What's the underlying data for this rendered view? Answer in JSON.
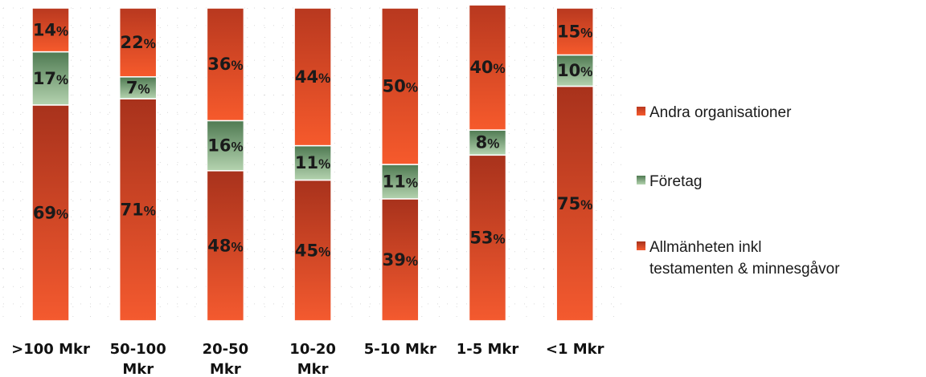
{
  "chart_data": {
    "type": "bar",
    "stacked": true,
    "percent": true,
    "categories": [
      ">100 Mkr",
      "50-100 Mkr",
      "20-50 Mkr",
      "10-20 Mkr",
      "5-10 Mkr",
      "1-5 Mkr",
      "<1 Mkr"
    ],
    "category_lines": [
      [
        ">100 Mkr"
      ],
      [
        "50-100",
        "Mkr"
      ],
      [
        "20-50",
        "Mkr"
      ],
      [
        "10-20",
        "Mkr"
      ],
      [
        "5-10 Mkr"
      ],
      [
        "1-5 Mkr"
      ],
      [
        "<1 Mkr"
      ]
    ],
    "series": [
      {
        "name": "Allmänheten inkl testamenten & minnesgåvor",
        "legend_lines": [
          "Allmänheten inkl",
          "testamenten & minnesgåvor"
        ],
        "values": [
          69,
          71,
          48,
          45,
          39,
          53,
          75
        ],
        "labels": [
          "69%",
          "71%",
          "48%",
          "45%",
          "39%",
          "53%",
          "75%"
        ],
        "color_top": "#a8321c",
        "color_bottom": "#f45a2f"
      },
      {
        "name": "Företag",
        "legend_lines": [
          "Företag"
        ],
        "values": [
          17,
          7,
          16,
          11,
          11,
          8,
          10
        ],
        "labels": [
          "17%",
          "7%",
          "16%",
          "11%",
          "11%",
          "8%",
          "10%"
        ],
        "color_top": "#4f7a52",
        "color_bottom": "#b4d3af"
      },
      {
        "name": "Andra organisationer",
        "legend_lines": [
          "Andra organisationer"
        ],
        "values": [
          14,
          22,
          36,
          44,
          50,
          40,
          15
        ],
        "labels": [
          "14%",
          "22%",
          "36%",
          "44%",
          "50%",
          "40%",
          "15%"
        ],
        "color_top": "#b8381f",
        "color_bottom": "#f65a2c"
      }
    ],
    "legend_order": [
      2,
      1,
      0
    ],
    "legend_position": "right",
    "grid": "dotted",
    "ylim": [
      0,
      100
    ],
    "title": "",
    "xlabel": "",
    "ylabel": ""
  }
}
